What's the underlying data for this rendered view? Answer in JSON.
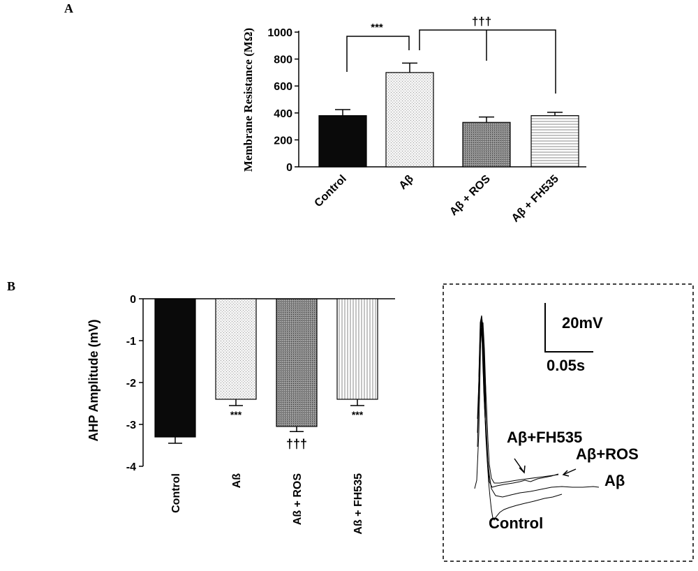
{
  "panel_labels": {
    "a": "A",
    "b": "B"
  },
  "colors": {
    "ink": "#000000",
    "bar_black": "#0a0a0a",
    "bar_light": "#efefef",
    "bar_dark": "#7f7f7f",
    "bar_mid": "#dcdcdc",
    "trace_fill": "#000000"
  },
  "chart_data": [
    {
      "type": "bar",
      "panel": "A",
      "categories": [
        "Control",
        "Aβ",
        "Aβ + ROS",
        "Aβ + FH535"
      ],
      "values": [
        380,
        700,
        330,
        380
      ],
      "errors": [
        45,
        70,
        40,
        25
      ],
      "ylabel": "Membrane Resistance (MΩ)",
      "ylim": [
        0,
        1000
      ],
      "yticks": [
        0,
        200,
        400,
        600,
        800,
        1000
      ],
      "grid": false,
      "bar_patterns": [
        "solid-black",
        "light-stipple",
        "dark-stipple",
        "horizontal-lines"
      ],
      "annotations": [
        {
          "text": "***",
          "from": "Control",
          "to": "Aβ"
        },
        {
          "text": "†††",
          "from": "Aβ",
          "to": [
            "Aβ + ROS",
            "Aβ + FH535"
          ]
        }
      ]
    },
    {
      "type": "bar",
      "panel": "B",
      "categories": [
        "Control",
        "Aß",
        "Aß + ROS",
        "Aß + FH535"
      ],
      "values": [
        -3.3,
        -2.4,
        -3.05,
        -2.4
      ],
      "errors": [
        0.15,
        0.15,
        0.12,
        0.15
      ],
      "ylabel": "AHP Amplitude (mV)",
      "ylim": [
        -4,
        0
      ],
      "yticks": [
        0,
        -1,
        -2,
        -3,
        -4
      ],
      "grid": false,
      "bar_patterns": [
        "solid-black",
        "light-stipple",
        "dark-stipple",
        "vertical-lines"
      ],
      "significance": [
        "",
        "***",
        "†††",
        "***"
      ]
    }
  ],
  "traces": {
    "scale_voltage": "20mV",
    "scale_time": "0.05s",
    "labels": {
      "fh535": "Aβ+FH535",
      "ros": "Aβ+ROS",
      "ab": "Aβ",
      "control": "Control"
    }
  }
}
